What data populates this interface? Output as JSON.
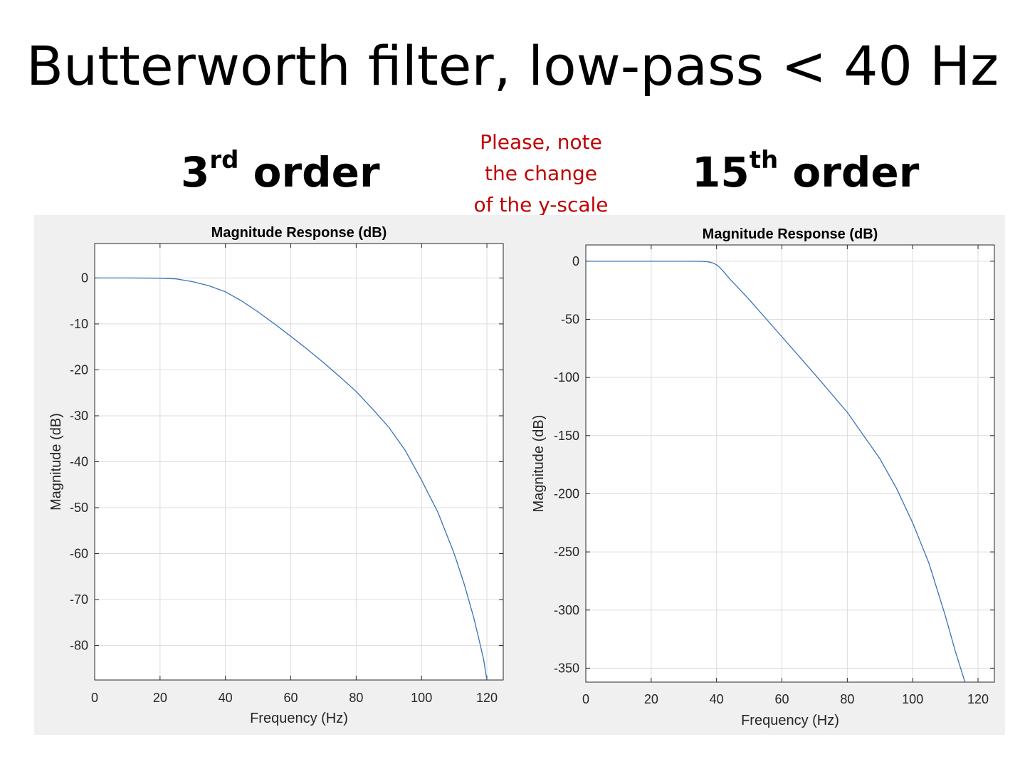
{
  "slide": {
    "title": "Butterworth filter, low-pass < 40 Hz",
    "left_label": {
      "number": "3",
      "suffix": "rd",
      "word": "order"
    },
    "right_label": {
      "number": "15",
      "suffix": "th",
      "word": "order"
    },
    "note_lines": [
      "Please, note",
      "the change",
      "of the y-scale"
    ],
    "note_color": "#c00000"
  },
  "chart_data": [
    {
      "type": "line",
      "title": "Magnitude Response (dB)",
      "xlabel": "Frequency (Hz)",
      "ylabel": "Magnitude (dB)",
      "xlim": [
        0,
        125
      ],
      "ylim": [
        -87.5,
        7.5
      ],
      "xticks": [
        0,
        20,
        40,
        60,
        80,
        100,
        120
      ],
      "yticks": [
        0,
        -10,
        -20,
        -30,
        -40,
        -50,
        -60,
        -70,
        -80
      ],
      "grid": true,
      "line_color": "#3a72b8",
      "series": [
        {
          "x": [
            0,
            10,
            20,
            25,
            30,
            35,
            40,
            45,
            50,
            55,
            60,
            65,
            70,
            75,
            80,
            85,
            90,
            95,
            100,
            105,
            110,
            113,
            116,
            118,
            119,
            120
          ],
          "y": [
            0,
            0,
            -0.05,
            -0.2,
            -0.8,
            -1.7,
            -3.0,
            -5.0,
            -7.4,
            -10.0,
            -12.7,
            -15.5,
            -18.4,
            -21.5,
            -24.7,
            -28.5,
            -32.5,
            -37.5,
            -44.0,
            -51.0,
            -60.0,
            -66.5,
            -74.0,
            -80.0,
            -83.0,
            -87.5
          ]
        }
      ]
    },
    {
      "type": "line",
      "title": "Magnitude Response (dB)",
      "xlabel": "Frequency (Hz)",
      "ylabel": "Magnitude (dB)",
      "xlim": [
        0,
        125
      ],
      "ylim": [
        -362,
        14
      ],
      "xticks": [
        0,
        20,
        40,
        60,
        80,
        100,
        120
      ],
      "yticks": [
        0,
        -50,
        -100,
        -150,
        -200,
        -250,
        -300,
        -350
      ],
      "grid": true,
      "line_color": "#3a72b8",
      "series": [
        {
          "x": [
            0,
            20,
            30,
            35,
            37,
            38,
            39,
            40,
            41,
            42,
            44,
            50,
            60,
            70,
            80,
            90,
            95,
            100,
            105,
            110,
            113,
            116
          ],
          "y": [
            0,
            0,
            0,
            -0.1,
            -0.4,
            -0.9,
            -1.7,
            -3.0,
            -5.5,
            -8.5,
            -15.0,
            -33.0,
            -65.0,
            -97.0,
            -130.0,
            -170.0,
            -195.0,
            -225.0,
            -260.0,
            -305.0,
            -335.0,
            -362.0
          ]
        }
      ]
    }
  ]
}
